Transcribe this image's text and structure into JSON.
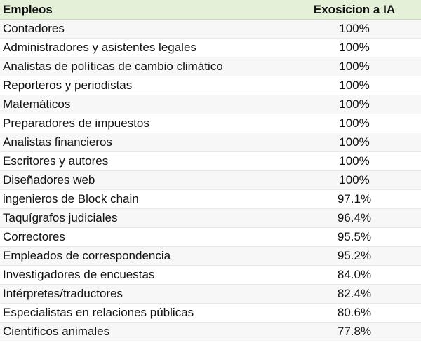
{
  "table": {
    "headers": {
      "job": "Empleos",
      "exposure": "Exosicion a IA"
    },
    "rows": [
      {
        "job": "Contadores",
        "exposure": "100%"
      },
      {
        "job": "Administradores y asistentes legales",
        "exposure": "100%"
      },
      {
        "job": "Analistas de políticas de cambio climático",
        "exposure": "100%"
      },
      {
        "job": "Reporteros y periodistas",
        "exposure": "100%"
      },
      {
        "job": "Matemáticos",
        "exposure": "100%"
      },
      {
        "job": "Preparadores de impuestos",
        "exposure": "100%"
      },
      {
        "job": "Analistas financieros",
        "exposure": "100%"
      },
      {
        "job": "Escritores y autores",
        "exposure": "100%"
      },
      {
        "job": "Diseñadores web",
        "exposure": "100%"
      },
      {
        "job": "ingenieros de Block chain",
        "exposure": "97.1%"
      },
      {
        "job": "Taquígrafos judiciales",
        "exposure": "96.4%"
      },
      {
        "job": "Correctores",
        "exposure": "95.5%"
      },
      {
        "job": "Empleados de correspondencia",
        "exposure": "95.2%"
      },
      {
        "job": "Investigadores de encuestas",
        "exposure": "84.0%"
      },
      {
        "job": "Intérpretes/traductores",
        "exposure": "82.4%"
      },
      {
        "job": "Especialistas en relaciones públicas",
        "exposure": "80.6%"
      },
      {
        "job": "Científicos animales",
        "exposure": "77.8%"
      }
    ]
  }
}
